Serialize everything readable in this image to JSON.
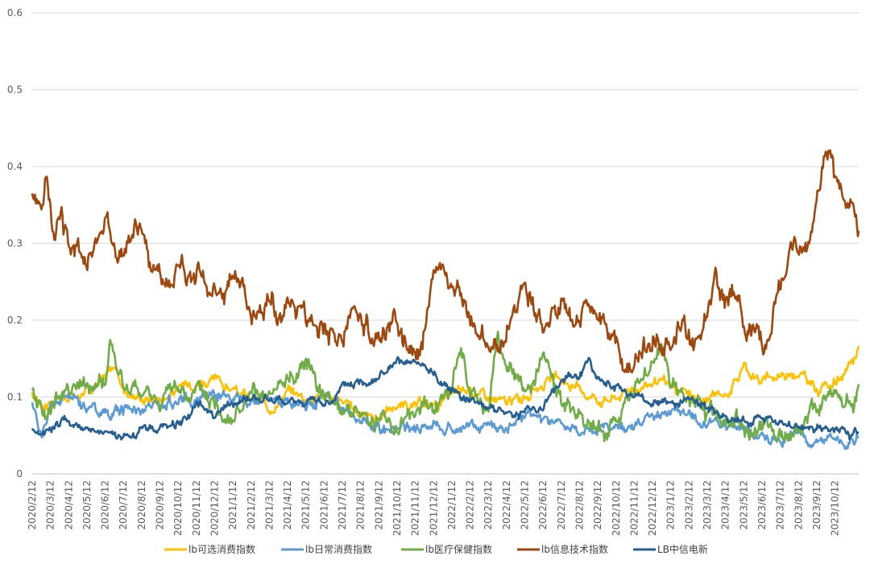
{
  "chart_data": {
    "type": "line",
    "title": "",
    "xlabel": "",
    "ylabel": "",
    "ylim": [
      0,
      0.6
    ],
    "yticks": [
      "0",
      "0.1",
      "0.2",
      "0.3",
      "0.4",
      "0.5",
      "0.6"
    ],
    "grid": true,
    "legend_position": "bottom",
    "x_tick_labels": [
      "2020/2/12",
      "2020/3/12",
      "2020/4/12",
      "2020/5/12",
      "2020/6/12",
      "2020/7/12",
      "2020/8/12",
      "2020/9/12",
      "2020/10/12",
      "2020/11/12",
      "2020/12/12",
      "2021/1/12",
      "2021/2/12",
      "2021/3/12",
      "2021/4/12",
      "2021/5/12",
      "2021/6/12",
      "2021/7/12",
      "2021/8/12",
      "2021/9/12",
      "2021/10/12",
      "2021/11/12",
      "2021/12/12",
      "2022/1/12",
      "2022/2/12",
      "2022/3/12",
      "2022/4/12",
      "2022/5/12",
      "2022/6/12",
      "2022/7/12",
      "2022/8/12",
      "2022/9/12",
      "2022/10/12",
      "2022/11/12",
      "2022/12/12",
      "2023/1/12",
      "2023/2/12",
      "2023/3/12",
      "2023/4/12",
      "2023/5/12",
      "2023/6/12",
      "2023/7/12",
      "2023/8/12",
      "2023/9/12",
      "2023/10/12"
    ],
    "x_range_months": [
      0,
      45.3
    ],
    "series": [
      {
        "name": "lb可选消费指数",
        "color": "#FFC000",
        "noise": 0.007,
        "points": [
          [
            0,
            0.1
          ],
          [
            1,
            0.092
          ],
          [
            2,
            0.098
          ],
          [
            3,
            0.115
          ],
          [
            4,
            0.125
          ],
          [
            4.5,
            0.14
          ],
          [
            5,
            0.11
          ],
          [
            6,
            0.1
          ],
          [
            7,
            0.1
          ],
          [
            8,
            0.11
          ],
          [
            9,
            0.125
          ],
          [
            10,
            0.12
          ],
          [
            11,
            0.11
          ],
          [
            12,
            0.095
          ],
          [
            13,
            0.085
          ],
          [
            14,
            0.11
          ],
          [
            15,
            0.1
          ],
          [
            16,
            0.105
          ],
          [
            17,
            0.09
          ],
          [
            18,
            0.08
          ],
          [
            19,
            0.075
          ],
          [
            20,
            0.09
          ],
          [
            21,
            0.085
          ],
          [
            22,
            0.09
          ],
          [
            23,
            0.1
          ],
          [
            24,
            0.11
          ],
          [
            25,
            0.1
          ],
          [
            26,
            0.09
          ],
          [
            27,
            0.1
          ],
          [
            28,
            0.12
          ],
          [
            29,
            0.12
          ],
          [
            30,
            0.11
          ],
          [
            31,
            0.1
          ],
          [
            32,
            0.1
          ],
          [
            33,
            0.115
          ],
          [
            34,
            0.12
          ],
          [
            35,
            0.11
          ],
          [
            36,
            0.1
          ],
          [
            37,
            0.095
          ],
          [
            38,
            0.105
          ],
          [
            39,
            0.14
          ],
          [
            40,
            0.12
          ],
          [
            41,
            0.13
          ],
          [
            42,
            0.135
          ],
          [
            43,
            0.11
          ],
          [
            44,
            0.12
          ],
          [
            44.5,
            0.13
          ],
          [
            45,
            0.14
          ],
          [
            45.3,
            0.165
          ]
        ]
      },
      {
        "name": "lb日常消费指数",
        "color": "#5B9BD5",
        "noise": 0.008,
        "points": [
          [
            0,
            0.09
          ],
          [
            0.5,
            0.05
          ],
          [
            1,
            0.085
          ],
          [
            2,
            0.1
          ],
          [
            3,
            0.09
          ],
          [
            4,
            0.08
          ],
          [
            5,
            0.085
          ],
          [
            6,
            0.085
          ],
          [
            7,
            0.09
          ],
          [
            8,
            0.1
          ],
          [
            9,
            0.095
          ],
          [
            10,
            0.11
          ],
          [
            11,
            0.105
          ],
          [
            12,
            0.1
          ],
          [
            13,
            0.09
          ],
          [
            14,
            0.095
          ],
          [
            15,
            0.09
          ],
          [
            16,
            0.1
          ],
          [
            17,
            0.085
          ],
          [
            18,
            0.065
          ],
          [
            19,
            0.055
          ],
          [
            20,
            0.06
          ],
          [
            21,
            0.06
          ],
          [
            22,
            0.065
          ],
          [
            23,
            0.06
          ],
          [
            24,
            0.06
          ],
          [
            25,
            0.065
          ],
          [
            26,
            0.065
          ],
          [
            27,
            0.075
          ],
          [
            28,
            0.065
          ],
          [
            29,
            0.06
          ],
          [
            30,
            0.055
          ],
          [
            31,
            0.06
          ],
          [
            32,
            0.065
          ],
          [
            33,
            0.06
          ],
          [
            34,
            0.07
          ],
          [
            35,
            0.085
          ],
          [
            36,
            0.075
          ],
          [
            37,
            0.065
          ],
          [
            38,
            0.06
          ],
          [
            39,
            0.06
          ],
          [
            40,
            0.045
          ],
          [
            41,
            0.045
          ],
          [
            42,
            0.05
          ],
          [
            43,
            0.05
          ],
          [
            44,
            0.045
          ],
          [
            45.3,
            0.045
          ]
        ]
      },
      {
        "name": "lb医疗保健指数",
        "color": "#70AD47",
        "noise": 0.012,
        "points": [
          [
            0,
            0.1
          ],
          [
            1,
            0.08
          ],
          [
            2,
            0.12
          ],
          [
            3,
            0.11
          ],
          [
            4,
            0.12
          ],
          [
            4.3,
            0.175
          ],
          [
            5,
            0.11
          ],
          [
            6,
            0.1
          ],
          [
            7,
            0.095
          ],
          [
            8,
            0.11
          ],
          [
            9,
            0.105
          ],
          [
            10,
            0.09
          ],
          [
            11,
            0.08
          ],
          [
            12,
            0.095
          ],
          [
            13,
            0.09
          ],
          [
            14,
            0.12
          ],
          [
            15,
            0.15
          ],
          [
            16,
            0.11
          ],
          [
            17,
            0.09
          ],
          [
            18,
            0.08
          ],
          [
            19,
            0.07
          ],
          [
            20,
            0.065
          ],
          [
            21,
            0.08
          ],
          [
            22,
            0.09
          ],
          [
            23,
            0.11
          ],
          [
            23.5,
            0.16
          ],
          [
            24,
            0.1
          ],
          [
            25,
            0.08
          ],
          [
            25.5,
            0.17
          ],
          [
            26,
            0.14
          ],
          [
            27,
            0.11
          ],
          [
            28,
            0.14
          ],
          [
            29,
            0.09
          ],
          [
            30,
            0.08
          ],
          [
            31,
            0.06
          ],
          [
            32,
            0.07
          ],
          [
            33,
            0.11
          ],
          [
            34,
            0.14
          ],
          [
            34.5,
            0.17
          ],
          [
            35,
            0.12
          ],
          [
            36,
            0.09
          ],
          [
            37,
            0.08
          ],
          [
            38,
            0.075
          ],
          [
            39,
            0.065
          ],
          [
            40,
            0.06
          ],
          [
            41,
            0.055
          ],
          [
            42,
            0.06
          ],
          [
            43,
            0.09
          ],
          [
            44,
            0.11
          ],
          [
            45,
            0.085
          ],
          [
            45.3,
            0.1
          ]
        ]
      },
      {
        "name": "lb信息技术指数",
        "color": "#9E480E",
        "noise": 0.016,
        "points": [
          [
            0,
            0.36
          ],
          [
            0.3,
            0.35
          ],
          [
            0.8,
            0.385
          ],
          [
            1.2,
            0.29
          ],
          [
            1.6,
            0.33
          ],
          [
            2,
            0.3
          ],
          [
            2.5,
            0.29
          ],
          [
            3,
            0.27
          ],
          [
            3.5,
            0.31
          ],
          [
            4,
            0.34
          ],
          [
            4.5,
            0.29
          ],
          [
            5,
            0.3
          ],
          [
            5.5,
            0.31
          ],
          [
            6,
            0.32
          ],
          [
            6.5,
            0.26
          ],
          [
            7,
            0.25
          ],
          [
            7.5,
            0.25
          ],
          [
            8,
            0.27
          ],
          [
            8.5,
            0.27
          ],
          [
            9,
            0.26
          ],
          [
            9.5,
            0.25
          ],
          [
            10,
            0.24
          ],
          [
            10.5,
            0.25
          ],
          [
            11,
            0.26
          ],
          [
            11.5,
            0.26
          ],
          [
            12,
            0.2
          ],
          [
            12.5,
            0.23
          ],
          [
            13,
            0.22
          ],
          [
            13.5,
            0.21
          ],
          [
            14,
            0.24
          ],
          [
            14.5,
            0.23
          ],
          [
            15,
            0.2
          ],
          [
            16,
            0.19
          ],
          [
            17,
            0.18
          ],
          [
            18,
            0.19
          ],
          [
            19,
            0.18
          ],
          [
            20,
            0.19
          ],
          [
            20.5,
            0.18
          ],
          [
            21,
            0.17
          ],
          [
            21.5,
            0.19
          ],
          [
            22,
            0.25
          ],
          [
            22.5,
            0.26
          ],
          [
            23,
            0.25
          ],
          [
            24,
            0.21
          ],
          [
            24.5,
            0.19
          ],
          [
            25,
            0.17
          ],
          [
            25.5,
            0.16
          ],
          [
            26,
            0.18
          ],
          [
            26.5,
            0.22
          ],
          [
            27,
            0.25
          ],
          [
            27.5,
            0.23
          ],
          [
            28,
            0.2
          ],
          [
            28.5,
            0.22
          ],
          [
            29,
            0.21
          ],
          [
            30,
            0.2
          ],
          [
            30.5,
            0.22
          ],
          [
            31,
            0.2
          ],
          [
            31.5,
            0.18
          ],
          [
            32,
            0.17
          ],
          [
            32.5,
            0.15
          ],
          [
            33,
            0.14
          ],
          [
            33.5,
            0.16
          ],
          [
            34,
            0.17
          ],
          [
            34.5,
            0.16
          ],
          [
            35,
            0.17
          ],
          [
            35.5,
            0.19
          ],
          [
            36,
            0.16
          ],
          [
            36.5,
            0.17
          ],
          [
            37,
            0.19
          ],
          [
            37.5,
            0.24
          ],
          [
            38,
            0.23
          ],
          [
            38.5,
            0.25
          ],
          [
            39,
            0.2
          ],
          [
            39.5,
            0.18
          ],
          [
            40,
            0.17
          ],
          [
            40.5,
            0.18
          ],
          [
            41,
            0.23
          ],
          [
            41.5,
            0.28
          ],
          [
            42,
            0.3
          ],
          [
            42.5,
            0.31
          ],
          [
            43,
            0.35
          ],
          [
            43.5,
            0.42
          ],
          [
            44,
            0.38
          ],
          [
            44.5,
            0.36
          ],
          [
            45,
            0.34
          ],
          [
            45.3,
            0.32
          ]
        ]
      },
      {
        "name": "LB中信电新",
        "color": "#255E91",
        "noise": 0.006,
        "points": [
          [
            0,
            0.055
          ],
          [
            1,
            0.06
          ],
          [
            2,
            0.07
          ],
          [
            3,
            0.06
          ],
          [
            4,
            0.05
          ],
          [
            5,
            0.045
          ],
          [
            6,
            0.055
          ],
          [
            7,
            0.06
          ],
          [
            8,
            0.065
          ],
          [
            9,
            0.09
          ],
          [
            10,
            0.08
          ],
          [
            11,
            0.09
          ],
          [
            12,
            0.1
          ],
          [
            13,
            0.095
          ],
          [
            14,
            0.09
          ],
          [
            15,
            0.095
          ],
          [
            16,
            0.09
          ],
          [
            17,
            0.11
          ],
          [
            18,
            0.12
          ],
          [
            19,
            0.13
          ],
          [
            20,
            0.14
          ],
          [
            21,
            0.14
          ],
          [
            22,
            0.13
          ],
          [
            23,
            0.11
          ],
          [
            24,
            0.1
          ],
          [
            25,
            0.09
          ],
          [
            26,
            0.08
          ],
          [
            27,
            0.08
          ],
          [
            28,
            0.09
          ],
          [
            29,
            0.12
          ],
          [
            30,
            0.13
          ],
          [
            30.5,
            0.15
          ],
          [
            31,
            0.12
          ],
          [
            32,
            0.11
          ],
          [
            33,
            0.1
          ],
          [
            34,
            0.09
          ],
          [
            35,
            0.095
          ],
          [
            36,
            0.09
          ],
          [
            37,
            0.085
          ],
          [
            38,
            0.075
          ],
          [
            39,
            0.07
          ],
          [
            40,
            0.075
          ],
          [
            41,
            0.065
          ],
          [
            42,
            0.06
          ],
          [
            43,
            0.06
          ],
          [
            44,
            0.055
          ],
          [
            45,
            0.05
          ],
          [
            45.3,
            0.055
          ]
        ]
      }
    ]
  }
}
